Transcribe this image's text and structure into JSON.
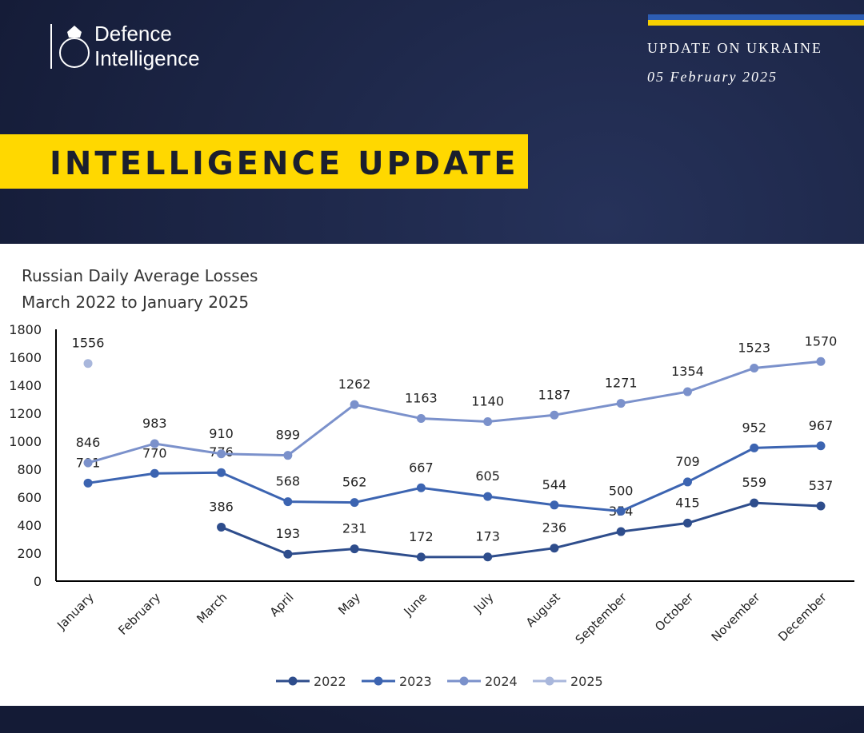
{
  "header": {
    "brand_line1": "Defence",
    "brand_line2": "Intelligence",
    "kicker": "UPDATE ON UKRAINE",
    "date": "05 February 2025",
    "banner": "INTELLIGENCE UPDATE"
  },
  "chart_data": {
    "type": "line",
    "title": "Russian Daily Average Losses",
    "subtitle": "March 2022 to January 2025",
    "categories": [
      "January",
      "February",
      "March",
      "April",
      "May",
      "June",
      "July",
      "August",
      "September",
      "October",
      "November",
      "December"
    ],
    "series": [
      {
        "name": "2022",
        "color": "#2e4d8c",
        "values": [
          null,
          null,
          386,
          193,
          231,
          172,
          173,
          236,
          354,
          415,
          559,
          537
        ]
      },
      {
        "name": "2023",
        "color": "#3c64b1",
        "values": [
          701,
          770,
          776,
          568,
          562,
          667,
          605,
          544,
          500,
          709,
          952,
          967
        ]
      },
      {
        "name": "2024",
        "color": "#7b91cb",
        "values": [
          846,
          983,
          910,
          899,
          1262,
          1163,
          1140,
          1187,
          1271,
          1354,
          1523,
          1570
        ]
      },
      {
        "name": "2025",
        "color": "#a9b7dc",
        "values": [
          1556,
          null,
          null,
          null,
          null,
          null,
          null,
          null,
          null,
          null,
          null,
          null
        ]
      }
    ],
    "ylim": [
      0,
      1800
    ],
    "yticks": [
      0,
      200,
      400,
      600,
      800,
      1000,
      1200,
      1400,
      1600,
      1800
    ],
    "grid": false,
    "legend": "bottom"
  }
}
